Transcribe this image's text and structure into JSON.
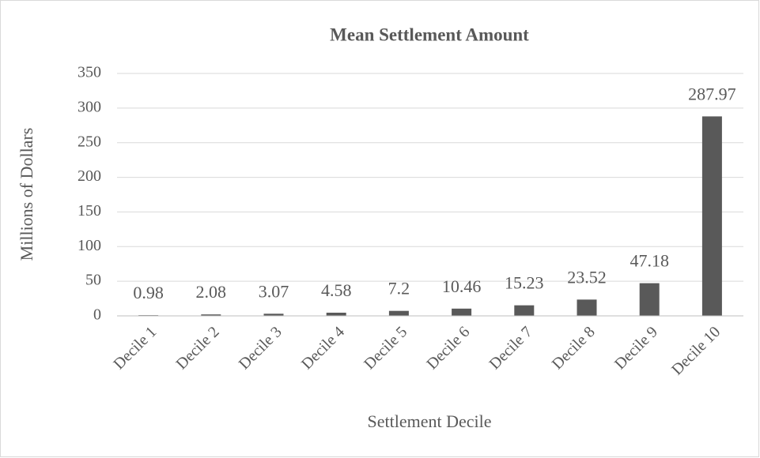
{
  "chart_data": {
    "type": "bar",
    "title": "Mean Settlement Amount",
    "x_label": "Settlement Decile",
    "y_label": "Millions of Dollars",
    "categories": [
      "Decile 1",
      "Decile 2",
      "Decile 3",
      "Decile 4",
      "Decile 5",
      "Decile 6",
      "Decile 7",
      "Decile 8",
      "Decile 9",
      "Decile 10"
    ],
    "values": [
      0.98,
      2.08,
      3.07,
      4.58,
      7.2,
      10.46,
      15.23,
      23.52,
      47.18,
      287.97
    ],
    "color": "#595959",
    "ylim": [
      0,
      350
    ],
    "yticks": [
      0,
      50,
      100,
      150,
      200,
      250,
      300,
      350
    ],
    "grid": true
  }
}
